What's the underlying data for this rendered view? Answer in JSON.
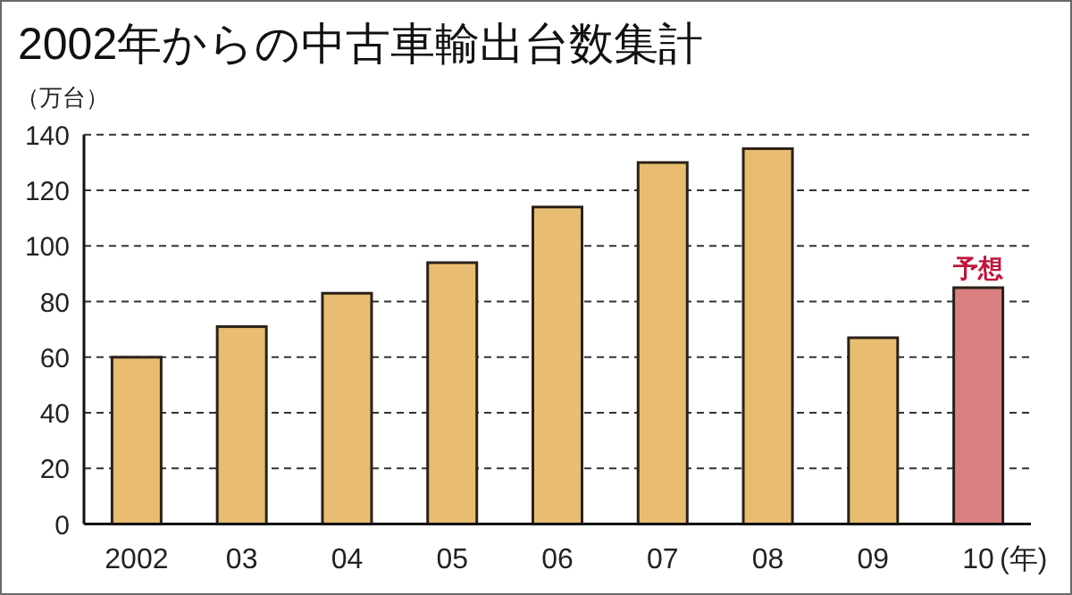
{
  "chart_data": {
    "type": "bar",
    "title": "2002年からの中古車輸出台数集計",
    "ylabel": "（万台）",
    "xlabel": "(年)",
    "categories": [
      "2002",
      "03",
      "04",
      "05",
      "06",
      "07",
      "08",
      "09",
      "10"
    ],
    "values": [
      60,
      71,
      83,
      94,
      114,
      130,
      135,
      67,
      85
    ],
    "colors": [
      "#e8bd72",
      "#e8bd72",
      "#e8bd72",
      "#e8bd72",
      "#e8bd72",
      "#e8bd72",
      "#e8bd72",
      "#e8bd72",
      "#da8080"
    ],
    "ylim": [
      0,
      140
    ],
    "yticks": [
      0,
      20,
      40,
      60,
      80,
      100,
      120,
      140
    ],
    "grid": "y",
    "annotations": [
      {
        "text": "予想",
        "x": "10",
        "y": 85
      }
    ]
  }
}
